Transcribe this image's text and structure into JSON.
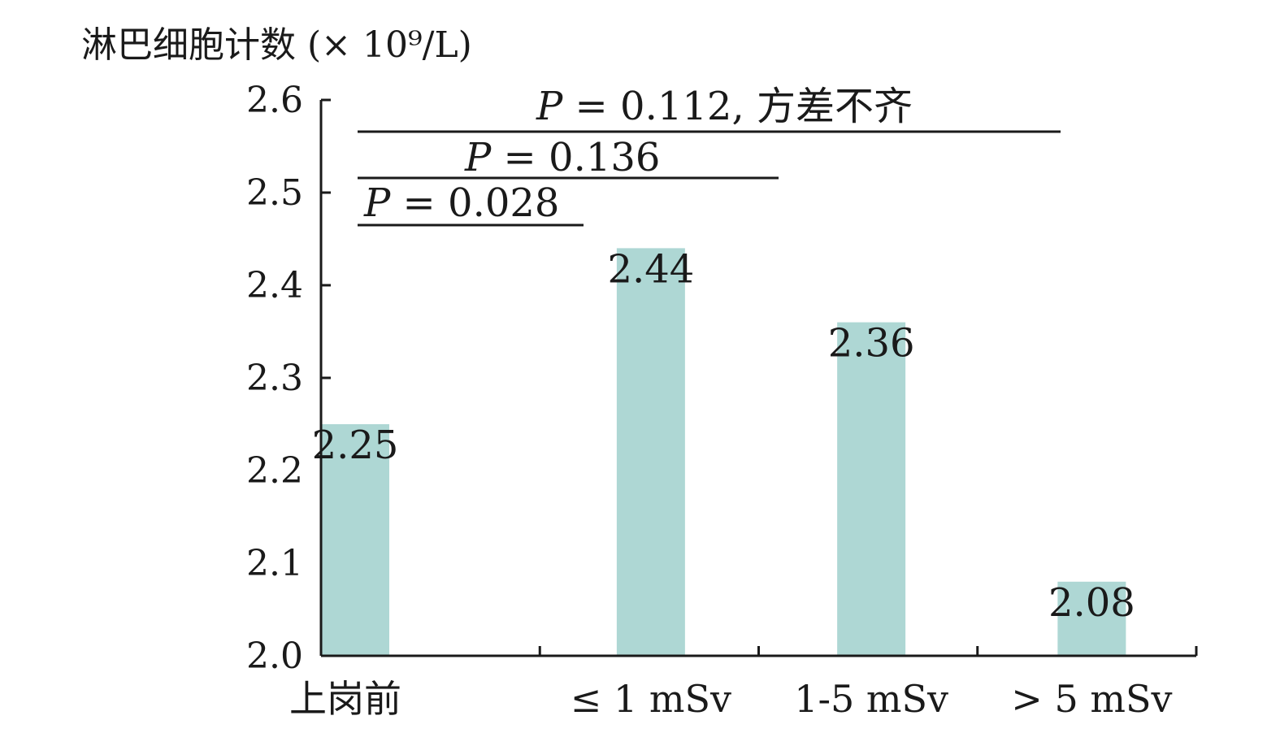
{
  "chart_data": {
    "type": "bar",
    "title": "",
    "ylabel": "淋巴细胞计数 (× 10⁹/L)",
    "xlabel": "",
    "categories": [
      "上岗前",
      "≤ 1 mSv",
      "1-5 mSv",
      "> 5 mSv"
    ],
    "values": [
      2.25,
      2.44,
      2.36,
      2.08
    ],
    "data_labels": [
      "2.25",
      "2.44",
      "2.36",
      "2.08"
    ],
    "ylim": [
      2.0,
      2.6
    ],
    "yticks": [
      2.0,
      2.1,
      2.2,
      2.3,
      2.4,
      2.5,
      2.6
    ],
    "ytick_labels": [
      "2.0",
      "2.1",
      "2.2",
      "2.3",
      "2.4",
      "2.5",
      "2.6"
    ],
    "grid": false,
    "legend": "none",
    "bar_color": "#aed7d4",
    "annotations": [
      {
        "text": "P = 0.112, 方差不齐",
        "from": 0,
        "to": 3
      },
      {
        "text": "P = 0.136",
        "from": 0,
        "to": 2
      },
      {
        "text": "P = 0.028",
        "from": 0,
        "to": 1
      }
    ]
  }
}
